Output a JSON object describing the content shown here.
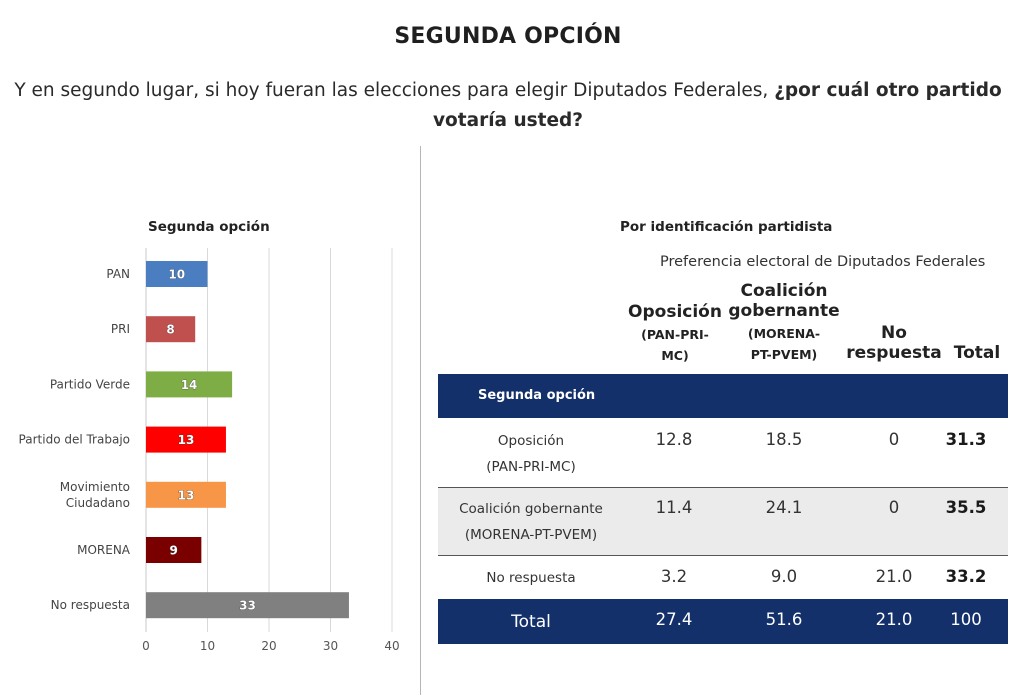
{
  "header": {
    "title": "SEGUNDA OPCIÓN",
    "question_plain": "Y en segundo lugar, si hoy fueran las elecciones para elegir Diputados Federales,",
    "question_bold": "¿por cuál otro partido votaría usted?"
  },
  "colors": {
    "navy": "#13306b",
    "grid": "#d9d9d9"
  },
  "chart_data": {
    "type": "bar",
    "orientation": "horizontal",
    "title": "Segunda opción",
    "categories": [
      "PAN",
      "PRI",
      "Partido Verde",
      "Partido del Trabajo",
      "Movimiento Ciudadano",
      "MORENA",
      "No respuesta"
    ],
    "category_lines": [
      [
        "PAN"
      ],
      [
        "PRI"
      ],
      [
        "Partido Verde"
      ],
      [
        "Partido del Trabajo"
      ],
      [
        "Movimiento",
        "Ciudadano"
      ],
      [
        "MORENA"
      ],
      [
        "No respuesta"
      ]
    ],
    "values": [
      10,
      8,
      14,
      13,
      13,
      9,
      33
    ],
    "value_labels": [
      "10",
      "8",
      "14",
      "13",
      "13",
      "9",
      "33"
    ],
    "colors": [
      "#4a7ec0",
      "#c0504d",
      "#7fad45",
      "#ff0000",
      "#f79646",
      "#7a0000",
      "#808080"
    ],
    "xlim": [
      0,
      40
    ],
    "xticks": [
      0,
      10,
      20,
      30,
      40
    ],
    "xtick_labels": [
      "0",
      "10",
      "20",
      "30",
      "40"
    ],
    "grid": true,
    "legend": "none"
  },
  "table": {
    "title": "Por identificación partidista",
    "super_header": "Preferencia electoral de Diputados Federales",
    "columns": [
      {
        "main": "Oposición",
        "sub": "(PAN-PRI-",
        "sub2": "MC)"
      },
      {
        "main": "Coalición",
        "main2": "gobernante",
        "sub": "(MORENA-",
        "sub2": "PT-PVEM)"
      },
      {
        "main": "No",
        "main2": "respuesta"
      },
      {
        "main": "Total"
      }
    ],
    "section_label": "Segunda opción",
    "rows": [
      {
        "label": "Oposición",
        "label2": "(PAN-PRI-MC)",
        "values": [
          "12.8",
          "18.5",
          "0",
          "31.3"
        ]
      },
      {
        "label": "Coalición gobernante",
        "label2": "(MORENA-PT-PVEM)",
        "values": [
          "11.4",
          "24.1",
          "0",
          "35.5"
        ]
      },
      {
        "label": "No respuesta",
        "values": [
          "3.2",
          "9.0",
          "21.0",
          "33.2"
        ]
      }
    ],
    "total_row": {
      "label": "Total",
      "values": [
        "27.4",
        "51.6",
        "21.0",
        "100"
      ]
    }
  }
}
